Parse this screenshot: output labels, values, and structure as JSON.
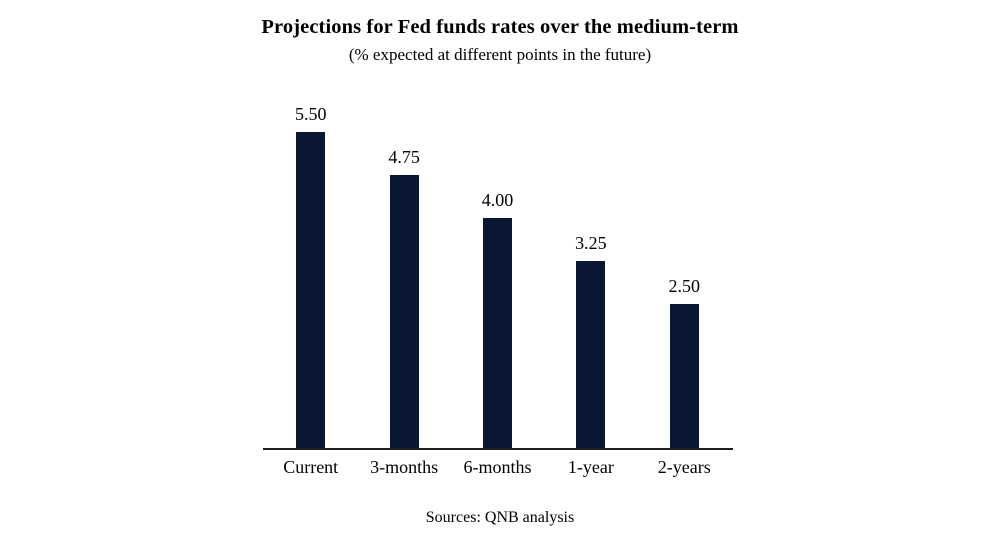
{
  "header": {
    "title": "Projections for Fed funds rates over the medium-term",
    "subtitle": "(% expected at different points in the future)"
  },
  "chart_data": {
    "type": "bar",
    "categories": [
      "Current",
      "3-months",
      "6-months",
      "1-year",
      "2-years"
    ],
    "values": [
      5.5,
      4.75,
      4.0,
      3.25,
      2.5
    ],
    "value_labels": [
      "5.50",
      "4.75",
      "4.00",
      "3.25",
      "2.50"
    ],
    "title": "Projections for Fed funds rates over the medium-term",
    "subtitle": "(% expected at different points in the future)",
    "xlabel": "",
    "ylabel": "",
    "ylim": [
      0,
      5.5
    ],
    "grid": false,
    "legend": false,
    "bar_color": "#0a1733",
    "axis_line_color": "#1f1f1f",
    "text_color": "#000000"
  },
  "footer": {
    "source": "Sources: QNB analysis"
  }
}
